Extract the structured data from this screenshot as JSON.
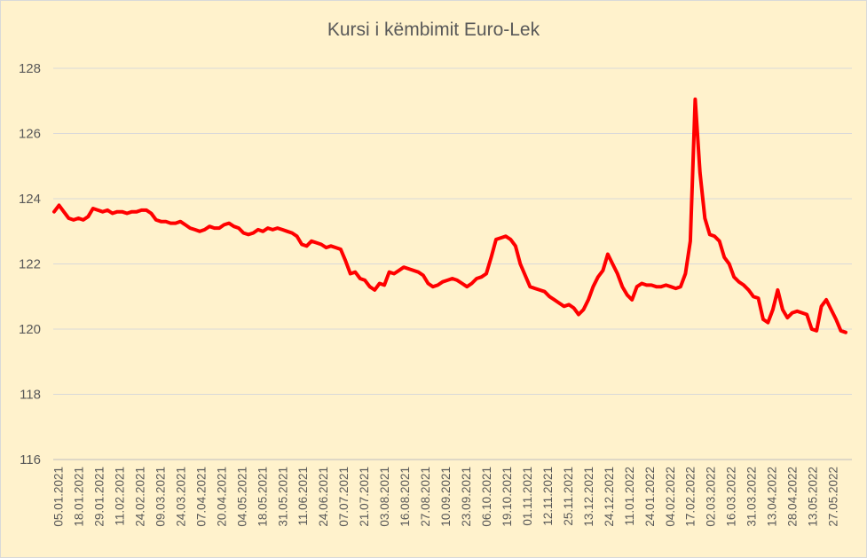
{
  "chart_data": {
    "type": "line",
    "title": "Kursi i këmbimit Euro-Lek",
    "xlabel": "",
    "ylabel": "",
    "ylim": [
      116,
      128
    ],
    "yticks": [
      116,
      118,
      120,
      122,
      124,
      126,
      128
    ],
    "grid": true,
    "legend": "none",
    "line_color": "#ff0000",
    "x_tick_labels": [
      "05.01.2021",
      "18.01.2021",
      "29.01.2021",
      "11.02.2021",
      "24.02.2021",
      "09.03.2021",
      "24.03.2021",
      "07.04.2021",
      "20.04.2021",
      "04.05.2021",
      "18.05.2021",
      "31.05.2021",
      "11.06.2021",
      "24.06.2021",
      "07.07.2021",
      "21.07.2021",
      "03.08.2021",
      "16.08.2021",
      "27.08.2021",
      "10.09.2021",
      "23.09.2021",
      "06.10.2021",
      "19.10.2021",
      "01.11.2021",
      "12.11.2021",
      "25.11.2021",
      "13.12.2021",
      "24.12.2021",
      "11.01.2022",
      "24.01.2022",
      "04.02.2022",
      "17.02.2022",
      "02.03.2022",
      "16.03.2022",
      "31.03.2022",
      "13.04.2022",
      "28.04.2022",
      "13.05.2022",
      "27.05.2022"
    ],
    "series": [
      {
        "values": [
          123.6,
          123.8,
          123.6,
          123.4,
          123.35,
          123.4,
          123.35,
          123.45,
          123.7,
          123.65,
          123.6,
          123.65,
          123.55,
          123.6,
          123.6,
          123.55,
          123.6,
          123.6,
          123.65,
          123.65,
          123.55,
          123.35,
          123.3,
          123.3,
          123.25,
          123.25,
          123.3,
          123.2,
          123.1,
          123.05,
          123.0,
          123.05,
          123.15,
          123.1,
          123.1,
          123.2,
          123.25,
          123.15,
          123.1,
          122.95,
          122.9,
          122.95,
          123.05,
          123.0,
          123.1,
          123.05,
          123.1,
          123.05,
          123.0,
          122.95,
          122.85,
          122.6,
          122.55,
          122.7,
          122.65,
          122.6,
          122.5,
          122.55,
          122.5,
          122.45,
          122.1,
          121.7,
          121.75,
          121.55,
          121.5,
          121.3,
          121.2,
          121.4,
          121.35,
          121.75,
          121.7,
          121.8,
          121.9,
          121.85,
          121.8,
          121.75,
          121.65,
          121.4,
          121.3,
          121.35,
          121.45,
          121.5,
          121.55,
          121.5,
          121.4,
          121.3,
          121.4,
          121.55,
          121.6,
          121.7,
          122.2,
          122.75,
          122.8,
          122.85,
          122.75,
          122.55,
          122.0,
          121.65,
          121.3,
          121.25,
          121.2,
          121.15,
          121.0,
          120.9,
          120.8,
          120.7,
          120.75,
          120.65,
          120.45,
          120.6,
          120.9,
          121.3,
          121.6,
          121.8,
          122.3,
          122.0,
          121.7,
          121.3,
          121.05,
          120.9,
          121.3,
          121.4,
          121.35,
          121.35,
          121.3,
          121.3,
          121.35,
          121.3,
          121.25,
          121.3,
          121.7,
          122.7,
          127.05,
          124.8,
          123.4,
          122.9,
          122.85,
          122.7,
          122.2,
          122.0,
          121.6,
          121.45,
          121.35,
          121.2,
          121.0,
          120.95,
          120.3,
          120.2,
          120.6,
          121.2,
          120.6,
          120.35,
          120.5,
          120.55,
          120.5,
          120.45,
          120.0,
          119.95,
          120.7,
          120.9,
          120.6,
          120.3,
          119.95,
          119.9
        ]
      }
    ]
  }
}
